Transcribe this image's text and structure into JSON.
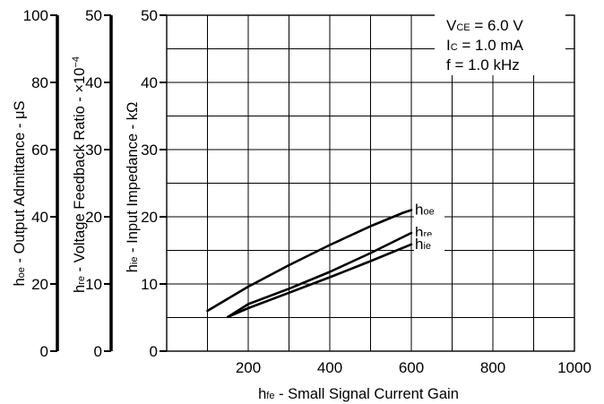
{
  "chart_data": {
    "type": "line",
    "xlabel_main": "h",
    "xlabel_sub": "fe",
    "xlabel_rest": " - Small Signal Current Gain",
    "xlim": [
      0,
      1000
    ],
    "x_ticks": [
      "200",
      "400",
      "600",
      "800",
      "1000"
    ],
    "axes": [
      {
        "id": "hoe",
        "label_main": "h",
        "label_sub": "oe",
        "label_rest": " - Output Admittance - μS",
        "ylim": [
          0,
          100
        ],
        "ticks": [
          "0",
          "20",
          "40",
          "60",
          "80",
          "100"
        ]
      },
      {
        "id": "hre",
        "label_main": "h",
        "label_sub": "re",
        "label_rest": " - Voltage Feedback Ratio - ×10",
        "label_sup": "−4",
        "ylim": [
          0,
          50
        ],
        "ticks": [
          "0",
          "10",
          "20",
          "30",
          "40",
          "50"
        ]
      },
      {
        "id": "hie",
        "label_main": "h",
        "label_sub": "ie",
        "label_rest": " - Input Impedance - kΩ",
        "ylim": [
          0,
          50
        ],
        "ticks": [
          "0",
          "10",
          "20",
          "30",
          "40",
          "50"
        ]
      }
    ],
    "grid": true,
    "conditions": [
      {
        "main": "V",
        "sub": "CE",
        "rest": " = 6.0 V"
      },
      {
        "main": "I",
        "sub": "C",
        "rest": " = 1.0 mA"
      },
      {
        "main": "",
        "sub": "",
        "rest": "f = 1.0 kHz"
      }
    ],
    "series": [
      {
        "name_main": "h",
        "name_sub": "oe",
        "x": [
          100,
          200,
          300,
          400,
          500,
          580,
          600
        ],
        "y": [
          6,
          9.6,
          12.8,
          15.8,
          18.6,
          20.6,
          21
        ]
      },
      {
        "name_main": "h",
        "name_sub": "re",
        "x": [
          150,
          200,
          300,
          400,
          500,
          600
        ],
        "y": [
          5.1,
          7,
          9.3,
          11.8,
          14.6,
          17.6
        ]
      },
      {
        "name_main": "h",
        "name_sub": "ie",
        "x": [
          150,
          200,
          300,
          400,
          500,
          600
        ],
        "y": [
          5.1,
          6.4,
          8.7,
          11,
          13.4,
          15.9
        ]
      }
    ]
  }
}
